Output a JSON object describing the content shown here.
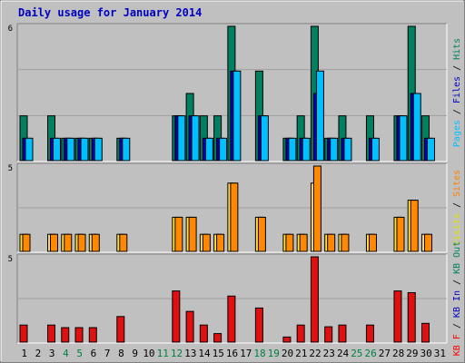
{
  "chart_data": {
    "type": "bar",
    "title": "Daily usage for January 2014",
    "title_color": "#0000c0",
    "categories": [
      "1",
      "2",
      "3",
      "4",
      "5",
      "6",
      "7",
      "8",
      "9",
      "10",
      "11",
      "12",
      "13",
      "14",
      "15",
      "16",
      "17",
      "18",
      "19",
      "20",
      "21",
      "22",
      "23",
      "24",
      "25",
      "26",
      "27",
      "28",
      "29",
      "30",
      "31"
    ],
    "weekend_days": [
      "4",
      "5",
      "11",
      "12",
      "18",
      "19",
      "25",
      "26"
    ],
    "weekday_label_color": "#000000",
    "weekend_label_color": "#008040",
    "grid": true,
    "panels": [
      {
        "id": "top",
        "ymax_label": "6",
        "ymax": 6,
        "side_label": [
          {
            "text": "Pages",
            "color": "#00c0ff"
          },
          {
            "text": " / ",
            "color": "#000000"
          },
          {
            "text": "Files",
            "color": "#0000c0"
          },
          {
            "text": " / ",
            "color": "#000000"
          },
          {
            "text": "Hits",
            "color": "#008060"
          }
        ],
        "series": [
          {
            "name": "Hits",
            "color": "#008060",
            "values": [
              2,
              0,
              2,
              1,
              1,
              1,
              0,
              1,
              0,
              0,
              0,
              2,
              3,
              2,
              2,
              6,
              0,
              4,
              0,
              1,
              2,
              6,
              1,
              2,
              0,
              2,
              0,
              2,
              6,
              2,
              0
            ]
          },
          {
            "name": "Files",
            "color": "#0000c0",
            "values": [
              1,
              0,
              1,
              1,
              1,
              1,
              0,
              1,
              0,
              0,
              0,
              2,
              2,
              1,
              1,
              4,
              0,
              2,
              0,
              1,
              1,
              3,
              1,
              1,
              0,
              1,
              0,
              2,
              3,
              1,
              0
            ]
          },
          {
            "name": "Pages",
            "color": "#00c0ff",
            "values": [
              1,
              0,
              1,
              1,
              1,
              1,
              0,
              1,
              0,
              0,
              0,
              2,
              2,
              1,
              1,
              4,
              0,
              2,
              0,
              1,
              1,
              4,
              1,
              1,
              0,
              1,
              0,
              2,
              3,
              1,
              0
            ]
          }
        ]
      },
      {
        "id": "mid",
        "ymax_label": "5",
        "ymax": 5,
        "side_label": [
          {
            "text": "Visits",
            "color": "#e0e000"
          },
          {
            "text": " / ",
            "color": "#000000"
          },
          {
            "text": "Sites",
            "color": "#ff8000"
          }
        ],
        "series": [
          {
            "name": "Visits",
            "color": "#ffe040",
            "values": [
              1,
              0,
              1,
              1,
              1,
              1,
              0,
              1,
              0,
              0,
              0,
              2,
              2,
              1,
              1,
              4,
              0,
              2,
              0,
              1,
              1,
              4,
              1,
              1,
              0,
              1,
              0,
              2,
              3,
              1,
              0
            ]
          },
          {
            "name": "Sites",
            "color": "#ff8800",
            "values": [
              1,
              0,
              1,
              1,
              1,
              1,
              0,
              1,
              0,
              0,
              0,
              2,
              2,
              1,
              1,
              4,
              0,
              2,
              0,
              1,
              1,
              5,
              1,
              1,
              0,
              1,
              0,
              2,
              3,
              1,
              0
            ]
          }
        ]
      },
      {
        "id": "bot",
        "ymax_label": "5",
        "ymax": 5,
        "side_label": [
          {
            "text": "KB F",
            "color": "#ff0000"
          },
          {
            "text": " / ",
            "color": "#000000"
          },
          {
            "text": "KB In",
            "color": "#0000c0"
          },
          {
            "text": " / ",
            "color": "#000000"
          },
          {
            "text": "KB Out",
            "color": "#008060"
          }
        ],
        "series": [
          {
            "name": "KB F",
            "color": "#e01010",
            "values": [
              1.0,
              0,
              1.0,
              0.85,
              0.85,
              0.85,
              0,
              1.5,
              0,
              0,
              0,
              3.0,
              1.8,
              1.0,
              0.5,
              2.7,
              0,
              2.0,
              0,
              0.3,
              1.0,
              5.0,
              0.9,
              1.0,
              0,
              1.0,
              0,
              3.0,
              2.9,
              1.1,
              0
            ]
          }
        ]
      }
    ]
  }
}
